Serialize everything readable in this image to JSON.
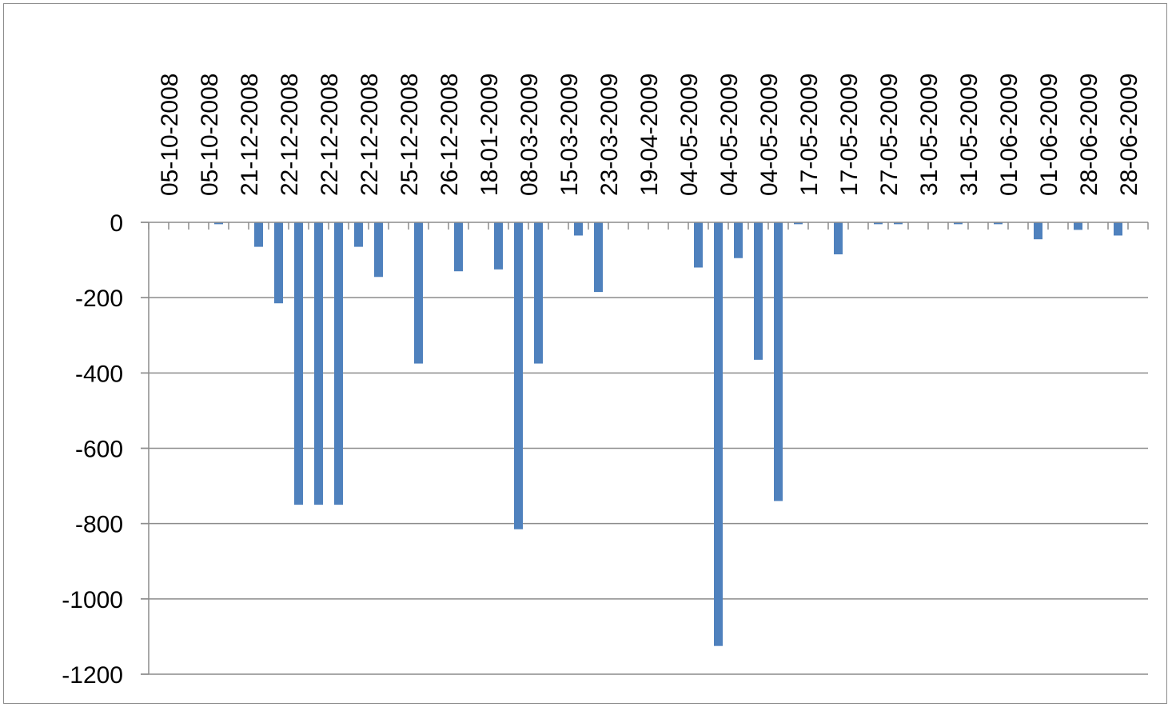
{
  "chart_data": {
    "type": "bar",
    "title": "",
    "xlabel": "",
    "ylabel": "",
    "ylim": [
      -1200,
      0
    ],
    "yticks": [
      0,
      -200,
      -400,
      -600,
      -800,
      -1000,
      -1200
    ],
    "grid": true,
    "legend": "none",
    "bar_color": "#4f81bd",
    "x_axis_position": "top",
    "categories": [
      "05-10-2008",
      "05-10-2008",
      "05-10-2008",
      "05-10-2008",
      "21-12-2008",
      "21-12-2008",
      "22-12-2008",
      "22-12-2008",
      "22-12-2008",
      "22-12-2008",
      "22-12-2008",
      "22-12-2008",
      "25-12-2008",
      "25-12-2008",
      "26-12-2008",
      "26-12-2008",
      "18-01-2009",
      "18-01-2009",
      "08-03-2009",
      "08-03-2009",
      "15-03-2009",
      "15-03-2009",
      "23-03-2009",
      "23-03-2009",
      "19-04-2009",
      "19-04-2009",
      "04-05-2009",
      "04-05-2009",
      "04-05-2009",
      "04-05-2009",
      "04-05-2009",
      "04-05-2009",
      "17-05-2009",
      "17-05-2009",
      "17-05-2009",
      "17-05-2009",
      "27-05-2009",
      "27-05-2009",
      "31-05-2009",
      "31-05-2009",
      "31-05-2009",
      "31-05-2009",
      "01-06-2009",
      "01-06-2009",
      "01-06-2009",
      "01-06-2009",
      "28-06-2009",
      "28-06-2009",
      "28-06-2009",
      "28-06-2009"
    ],
    "values": [
      0,
      0,
      0,
      -5,
      0,
      -65,
      -215,
      -750,
      -750,
      -750,
      -65,
      -145,
      0,
      -375,
      0,
      -130,
      0,
      -125,
      -815,
      -375,
      0,
      -35,
      -185,
      0,
      0,
      0,
      0,
      -120,
      -1125,
      -95,
      -365,
      -740,
      -5,
      0,
      -85,
      0,
      -5,
      -5,
      0,
      0,
      -5,
      0,
      -5,
      0,
      -45,
      0,
      -20,
      0,
      -35,
      0
    ]
  }
}
